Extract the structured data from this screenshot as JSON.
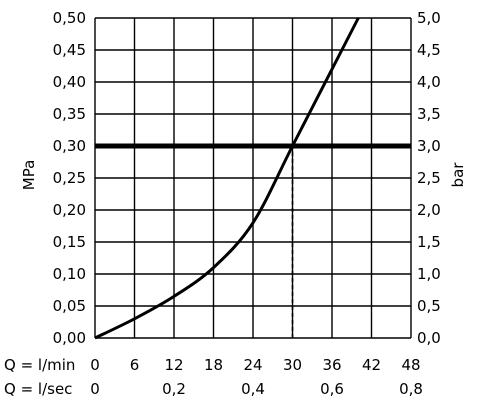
{
  "chart_data": {
    "type": "line",
    "title": "",
    "grid": true,
    "x": {
      "range": [
        0,
        48
      ],
      "ticks_primary": [
        0,
        6,
        12,
        18,
        24,
        30,
        36,
        42,
        48
      ],
      "tick_labels_primary": [
        "0",
        "6",
        "12",
        "18",
        "24",
        "30",
        "36",
        "42",
        "48"
      ],
      "label_primary": "Q = l/min",
      "ticks_secondary_pos": [
        0,
        12,
        24,
        36,
        48
      ],
      "tick_labels_secondary": [
        "0",
        "0,2",
        "0,4",
        "0,6",
        "0,8"
      ],
      "label_secondary": "Q = l/sec"
    },
    "y": {
      "range": [
        0,
        0.5
      ],
      "ticks_left": [
        0,
        0.05,
        0.1,
        0.15,
        0.2,
        0.25,
        0.3,
        0.35,
        0.4,
        0.45,
        0.5
      ],
      "tick_labels_left": [
        "0,00",
        "0,05",
        "0,10",
        "0,15",
        "0,20",
        "0,25",
        "0,30",
        "0,35",
        "0,40",
        "0,45",
        "0,50"
      ],
      "label_left": "MPa",
      "tick_labels_right": [
        "0,0",
        "0,5",
        "1,0",
        "1,5",
        "2,0",
        "2,5",
        "3,0",
        "3,5",
        "4,0",
        "4,5",
        "5,0"
      ],
      "label_right": "bar"
    },
    "series": [
      {
        "style": "curve",
        "points": [
          [
            0,
            0
          ],
          [
            6,
            0.03
          ],
          [
            12,
            0.065
          ],
          [
            18,
            0.11
          ],
          [
            24,
            0.18
          ],
          [
            30,
            0.3
          ],
          [
            36,
            0.42
          ],
          [
            40,
            0.5
          ]
        ]
      }
    ],
    "reference_line": {
      "y": 0.3,
      "style": "thick-solid"
    },
    "marker_line": {
      "x": 30,
      "from_y": 0,
      "to_y": 0.3,
      "style": "dashed"
    }
  }
}
